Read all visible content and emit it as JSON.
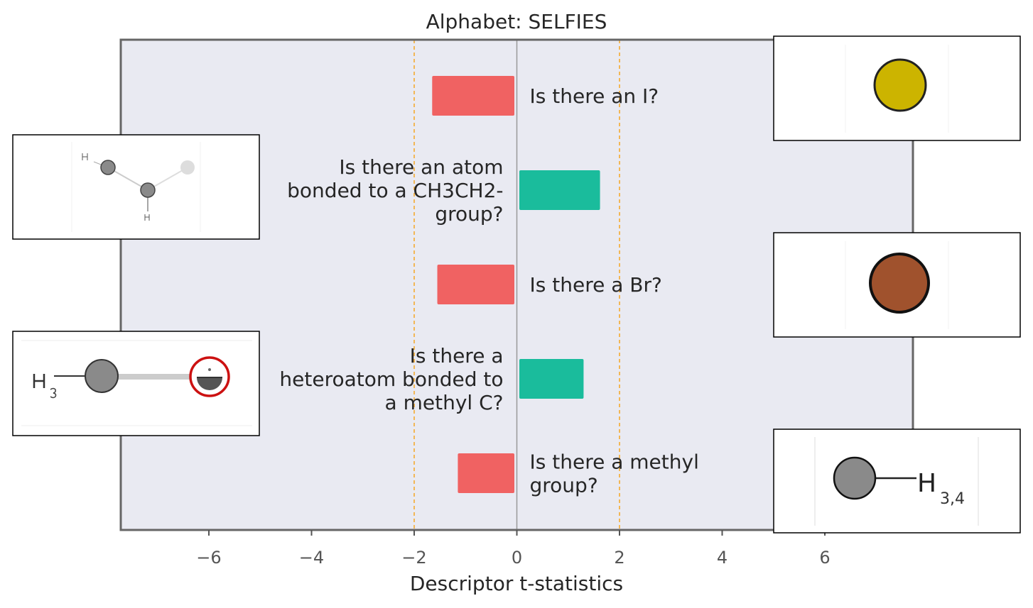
{
  "chart_data": {
    "type": "bar",
    "orientation": "horizontal",
    "title": "Alphabet: SELFIES",
    "xlabel": "Descriptor t-statistics",
    "ylabel": "",
    "xlim": [
      -7.7,
      7.7
    ],
    "xticks": [
      -6,
      -4,
      -2,
      0,
      2,
      4,
      6
    ],
    "xtick_labels": [
      "−6",
      "−4",
      "−2",
      "0",
      "2",
      "4",
      "6"
    ],
    "significance_lines": [
      -2,
      2
    ],
    "grid": false,
    "categories": [
      "Is there an I?",
      "Is there an atom bonded to a CH3CH2- group?",
      "Is there a Br?",
      "Is there a heteroatom bonded to a methyl C?",
      "Is there a methyl group?"
    ],
    "label_lines": [
      [
        "Is there an I?"
      ],
      [
        "Is there an atom",
        "bonded to a CH3CH2-",
        "group?"
      ],
      [
        "Is there a Br?"
      ],
      [
        "Is there a",
        "heteroatom bonded to",
        "a methyl C?"
      ],
      [
        "Is there a methyl",
        "group?"
      ]
    ],
    "values": [
      -1.65,
      1.62,
      -1.55,
      1.3,
      -1.15
    ],
    "colors": {
      "negative": "#f06262",
      "positive": "#1abc9c",
      "background": "#e9eaf2",
      "frame": "#666666",
      "zero_line": "#999999",
      "threshold_line": "#f5a623"
    },
    "insets": [
      {
        "name": "iodine-atom-molecule-icon",
        "color": "#ccb400",
        "row": 0,
        "side": "right"
      },
      {
        "name": "ethyl-fragment-molecule-icon",
        "row": 1,
        "side": "left"
      },
      {
        "name": "bromine-atom-molecule-icon",
        "color": "#a0522d",
        "row": 2,
        "side": "right"
      },
      {
        "name": "heteroatom-methyl-molecule-icon",
        "row": 3,
        "side": "left"
      },
      {
        "name": "methyl-group-molecule-icon",
        "row": 4,
        "side": "right",
        "label_main": "H",
        "label_sub": "3,4"
      }
    ]
  }
}
